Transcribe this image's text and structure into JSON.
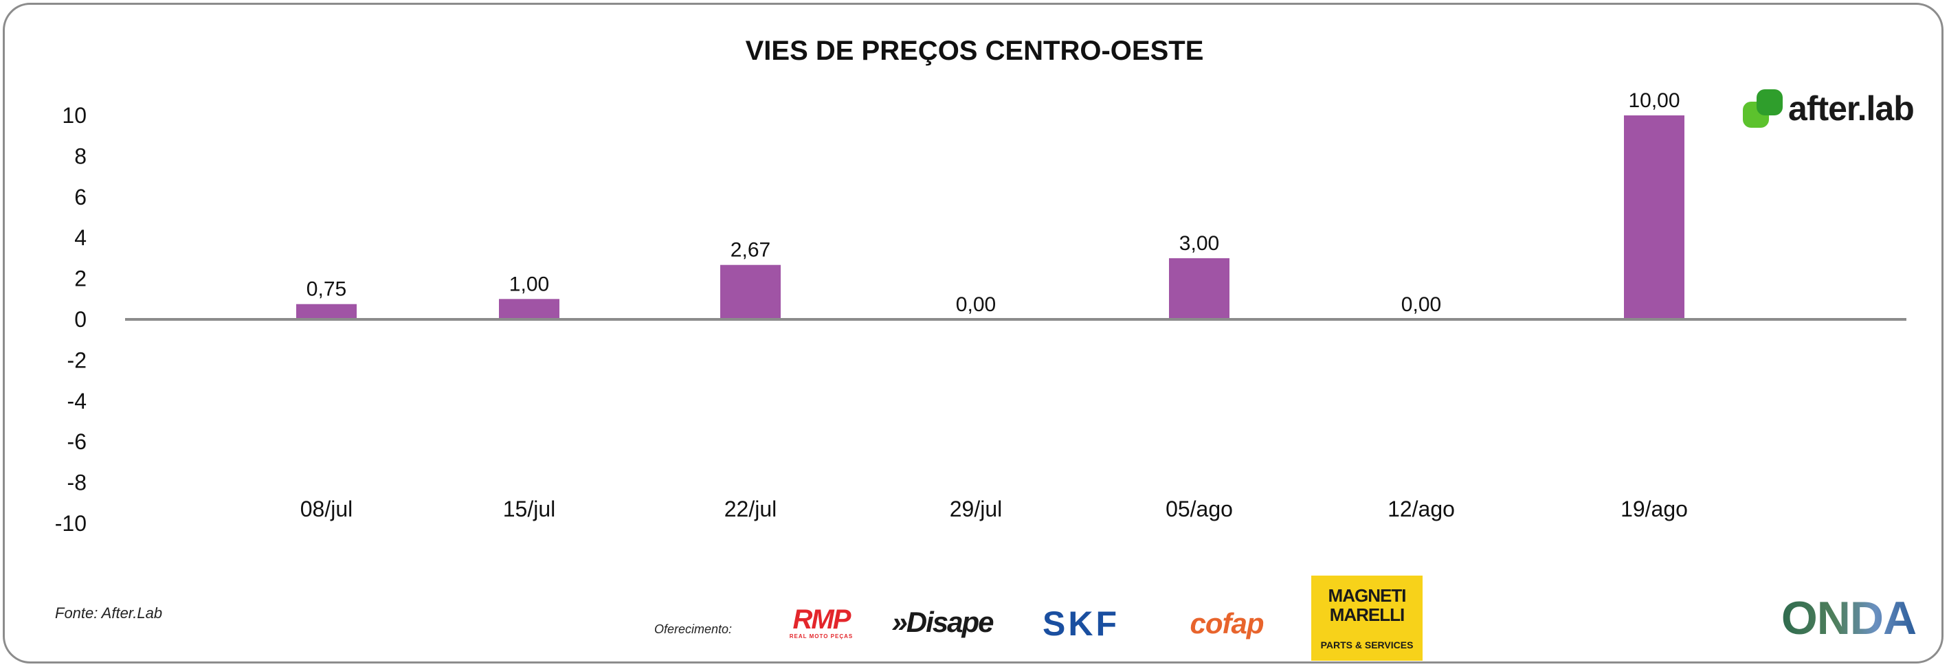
{
  "chart_data": {
    "type": "bar",
    "title": "VIES DE PREÇOS CENTRO-OESTE",
    "xlabel": "",
    "ylabel": "",
    "ylim": [
      -10,
      10
    ],
    "yticks": [
      10,
      8,
      6,
      4,
      2,
      0,
      -2,
      -4,
      -6,
      -8,
      -10
    ],
    "categories": [
      "08/jul",
      "15/jul",
      "22/jul",
      "29/jul",
      "05/ago",
      "12/ago",
      "19/ago"
    ],
    "values": [
      0.75,
      1.0,
      2.67,
      0.0,
      3.0,
      0.0,
      10.0
    ],
    "value_labels": [
      "0,75",
      "1,00",
      "2,67",
      "0,00",
      "3,00",
      "0,00",
      "10,00"
    ],
    "bar_color": "#a054a5",
    "axis_color": "#8c8c8c",
    "grid": false,
    "legend": "none"
  },
  "source_text": "Fonte: After.Lab",
  "offer_text": "Oferecimento:",
  "brand": {
    "logo_text": "after.lab",
    "accent": "#5cc22d"
  },
  "sponsors": {
    "rmp": {
      "name": "RMP",
      "tagline": "REAL MOTO PEÇAS"
    },
    "disape": {
      "name": "»Disape"
    },
    "skf": {
      "name": "SKF"
    },
    "cofap": {
      "name": "cofap"
    },
    "magneti": {
      "name": "MAGNETI MARELLI",
      "tagline": "PARTS & SERVICES"
    },
    "onda": {
      "name": "ONDA"
    }
  }
}
